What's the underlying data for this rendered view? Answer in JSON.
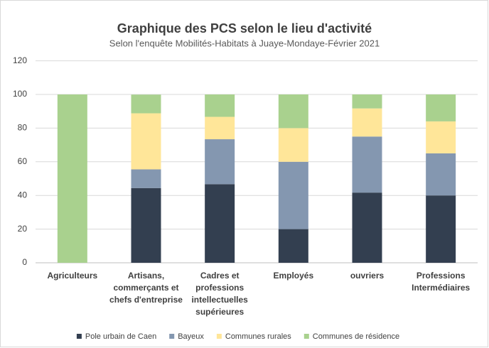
{
  "chart_data": {
    "type": "stacked_bar",
    "title": "Graphique des PCS selon le lieu d'activité",
    "subtitle": "Selon l'enquête Mobilités-Habitats à Juaye-Mondaye-Février 2021",
    "categories": [
      [
        "Agriculteurs"
      ],
      [
        "Artisans,",
        "commerçants et",
        "chefs d'entreprise"
      ],
      [
        "Cadres et",
        "professions",
        "intellectuelles",
        "supérieures"
      ],
      [
        "Employés"
      ],
      [
        "ouvriers"
      ],
      [
        "Professions",
        "Intermédiaires"
      ]
    ],
    "series": [
      {
        "name": "Pole urbain de Caen",
        "color": "#333f50",
        "values": [
          0,
          44.4,
          46.7,
          20,
          41.7,
          40
        ]
      },
      {
        "name": "Bayeux",
        "color": "#8497b0",
        "values": [
          0,
          11.1,
          26.7,
          40,
          33.3,
          25
        ]
      },
      {
        "name": "Communes rurales",
        "color": "#ffe699",
        "values": [
          0,
          33.3,
          13.3,
          20,
          16.7,
          19
        ]
      },
      {
        "name": "Communes de résidence",
        "color": "#a9d18e",
        "values": [
          100,
          11.1,
          13.3,
          20,
          8.3,
          16
        ]
      }
    ],
    "ylim": [
      0,
      120
    ],
    "yticks": [
      0,
      20,
      40,
      60,
      80,
      100,
      120
    ],
    "grid": true,
    "legend": "bottom"
  }
}
